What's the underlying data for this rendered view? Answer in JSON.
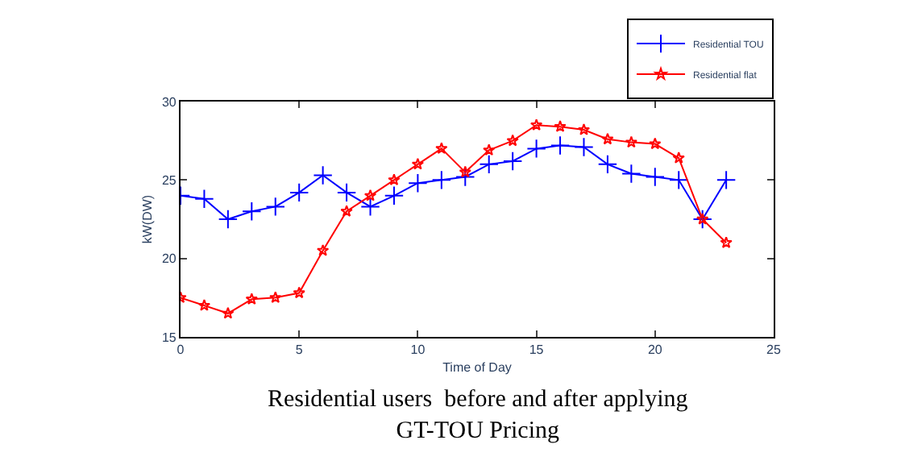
{
  "chart_data": {
    "type": "line",
    "title": "Residential users  before and after applying GT-TOU Pricing",
    "xlabel": "Time of Day",
    "ylabel": "kW(DW)",
    "x": [
      0,
      1,
      2,
      3,
      4,
      5,
      6,
      7,
      8,
      9,
      10,
      11,
      12,
      13,
      14,
      15,
      16,
      17,
      18,
      19,
      20,
      21,
      22,
      23
    ],
    "series": [
      {
        "name": "Residential TOU",
        "color": "#0000ff",
        "marker": "cross",
        "values": [
          24.0,
          23.8,
          22.5,
          23.0,
          23.3,
          24.2,
          25.3,
          24.2,
          23.3,
          24.0,
          24.8,
          25.0,
          25.2,
          26.0,
          26.2,
          27.0,
          27.2,
          27.1,
          26.0,
          25.4,
          25.2,
          25.0,
          22.5,
          25.0
        ]
      },
      {
        "name": "Residential flat",
        "color": "#ff0000",
        "marker": "star",
        "values": [
          17.5,
          17.0,
          16.5,
          17.4,
          17.5,
          17.8,
          20.5,
          23.0,
          24.0,
          25.0,
          26.0,
          27.0,
          25.5,
          26.9,
          27.5,
          28.5,
          28.4,
          28.2,
          27.6,
          27.4,
          27.3,
          26.4,
          22.5,
          21.0
        ]
      }
    ],
    "xlim": [
      0,
      25
    ],
    "xticks": [
      0,
      5,
      10,
      15,
      20,
      25
    ],
    "ylim": [
      15,
      30
    ],
    "yticks": [
      15,
      20,
      25,
      30
    ],
    "grid": false,
    "legend": "top right",
    "line_style": "solid"
  }
}
